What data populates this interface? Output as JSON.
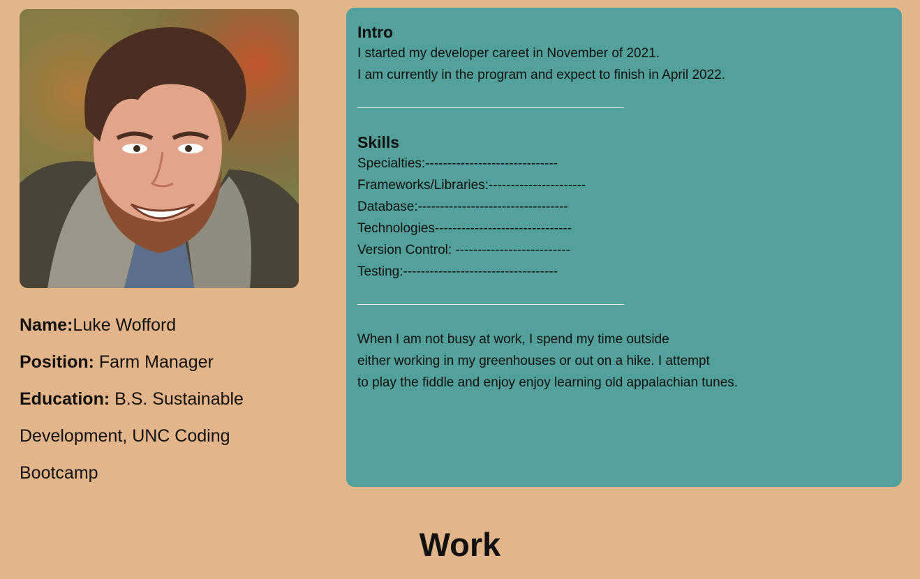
{
  "profile": {
    "photo_alt": "Portrait photo",
    "name_label": "Name:",
    "name_value": "Luke Wofford",
    "position_label": "Position:",
    "position_value": " Farm Manager",
    "education_label": "Education:",
    "education_value": " B.S. Sustainable Development, UNC Coding Bootcamp"
  },
  "card": {
    "intro_heading": "Intro",
    "intro_lines": [
      "I started my developer careet in November of 2021.",
      "I am currently in the program and expect to finish in April 2022."
    ],
    "skills_heading": "Skills",
    "skills_lines": [
      "Specialties:------------------------------",
      "Frameworks/Libraries:----------------------",
      "Database:----------------------------------",
      "Technologies-------------------------------",
      "Version Control: --------------------------",
      "Testing:-----------------------------------"
    ],
    "about_lines": [
      "When I am not busy at work, I spend my time outside",
      "either working in my greenhouses or out on a hike. I attempt",
      "to play the fiddle and enjoy enjoy learning old appalachian tunes."
    ]
  },
  "work": {
    "heading": "Work"
  },
  "colors": {
    "background": "#e2b58a",
    "card": "#53a09c"
  }
}
